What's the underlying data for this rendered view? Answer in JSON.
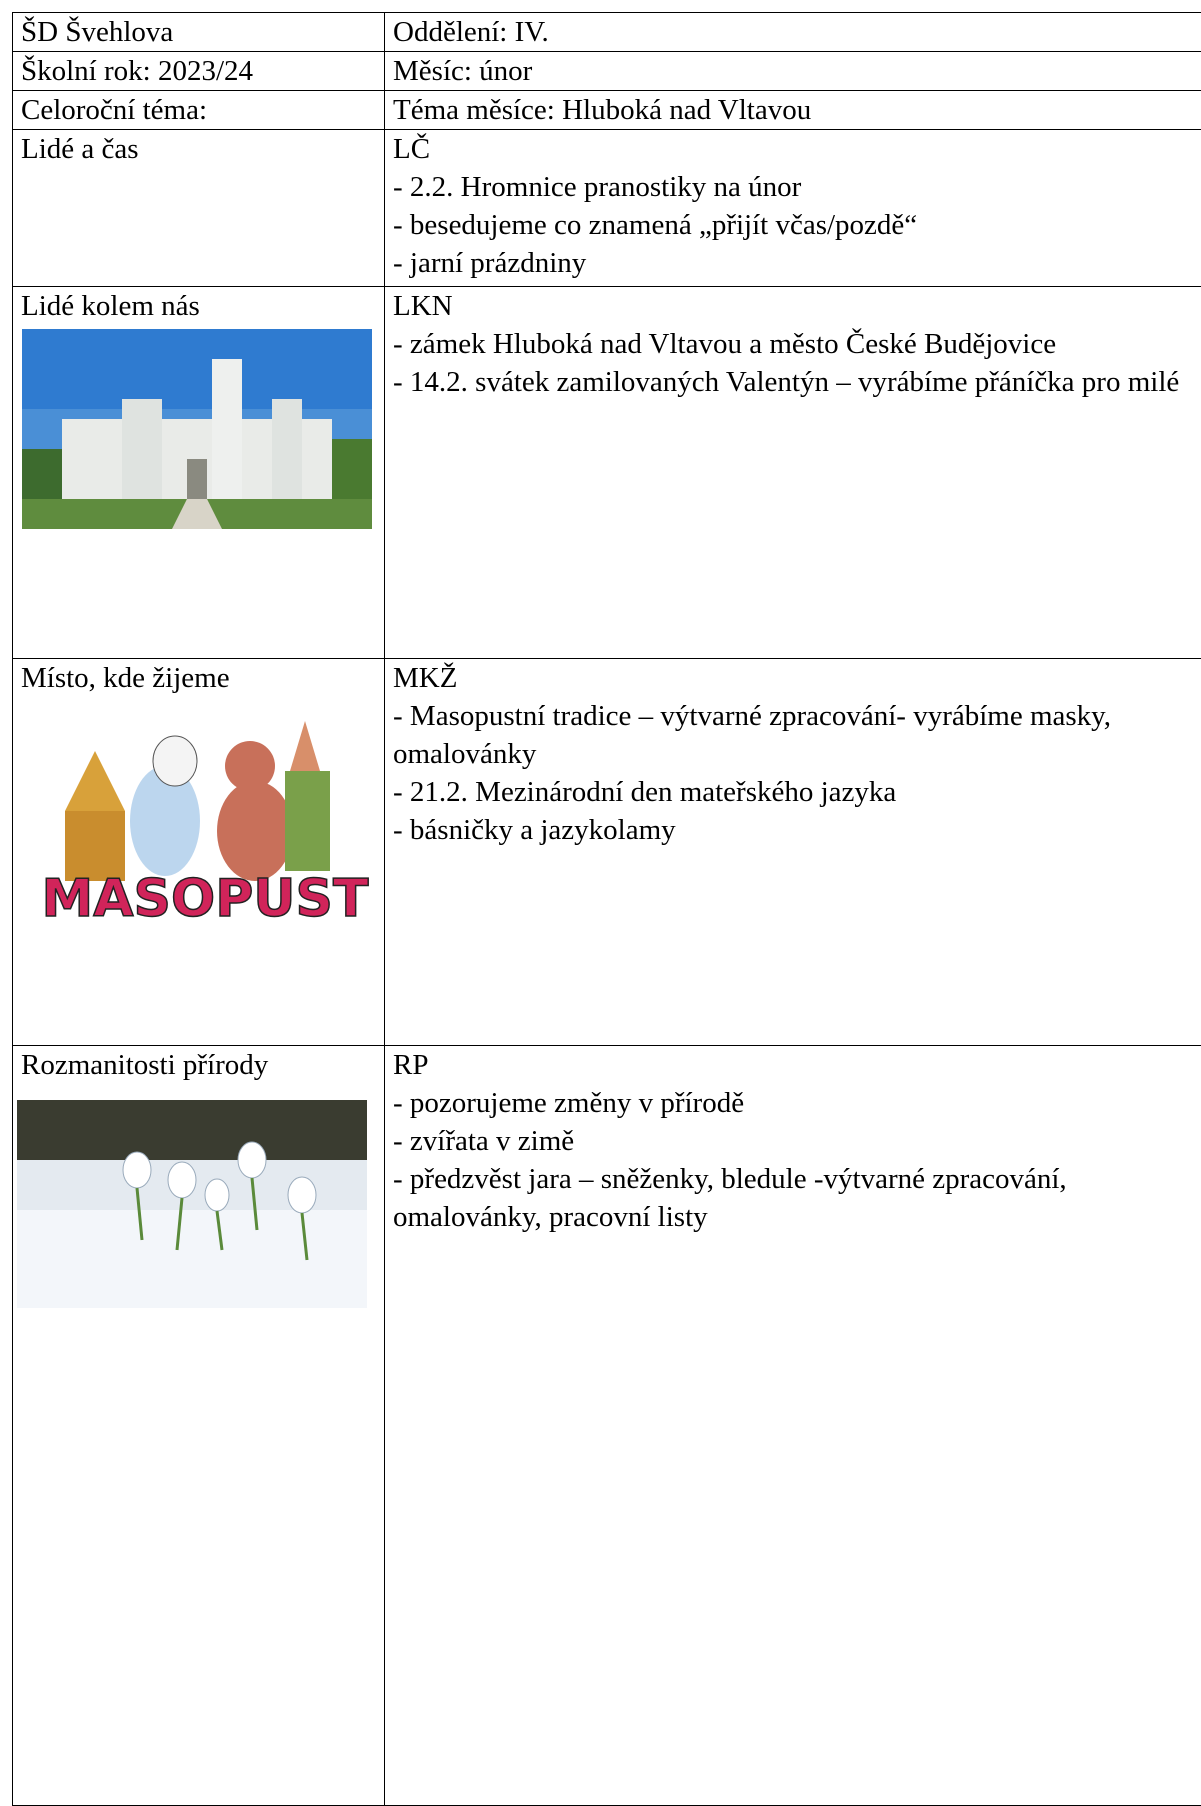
{
  "table": {
    "rows": [
      {
        "left": "ŠD Švehlova",
        "right": [
          "Oddělení: IV."
        ]
      },
      {
        "left": "Školní rok: 2023/24",
        "right": [
          "Měsíc: únor"
        ]
      },
      {
        "left": "Celoroční téma:",
        "right": [
          "Téma měsíce: Hluboká nad Vltavou"
        ]
      },
      {
        "left": "Lidé a čas",
        "right": [
          "LČ",
          "- 2.2. Hromnice pranostiky na únor",
          "- besedujeme co znamená „přijít včas/pozdě“",
          "- jarní prázdniny"
        ]
      },
      {
        "left": "Lidé kolem nás",
        "right": [
          "LKN",
          "- zámek Hluboká nad Vltavou a město České Budějovice",
          "- 14.2. svátek zamilovaných Valentýn – vyrábíme přáníčka pro milé"
        ]
      },
      {
        "left": "Místo, kde žijeme",
        "right": [
          "MKŽ",
          "- Masopustní tradice – výtvarné zpracování- vyrábíme masky, omalovánky",
          "- 21.2. Mezinárodní den mateřského jazyka",
          "- básničky a jazykolamy"
        ]
      },
      {
        "left": "Rozmanitosti přírody",
        "right": [
          "RP",
          "- pozorujeme změny v přírodě",
          "- zvířata v zimě",
          "- předzvěst jara –  sněženky, bledule -výtvarné zpracování, omalovánky, pracovní listy"
        ]
      }
    ]
  },
  "images": {
    "masopust_caption": "MASOPUST"
  }
}
